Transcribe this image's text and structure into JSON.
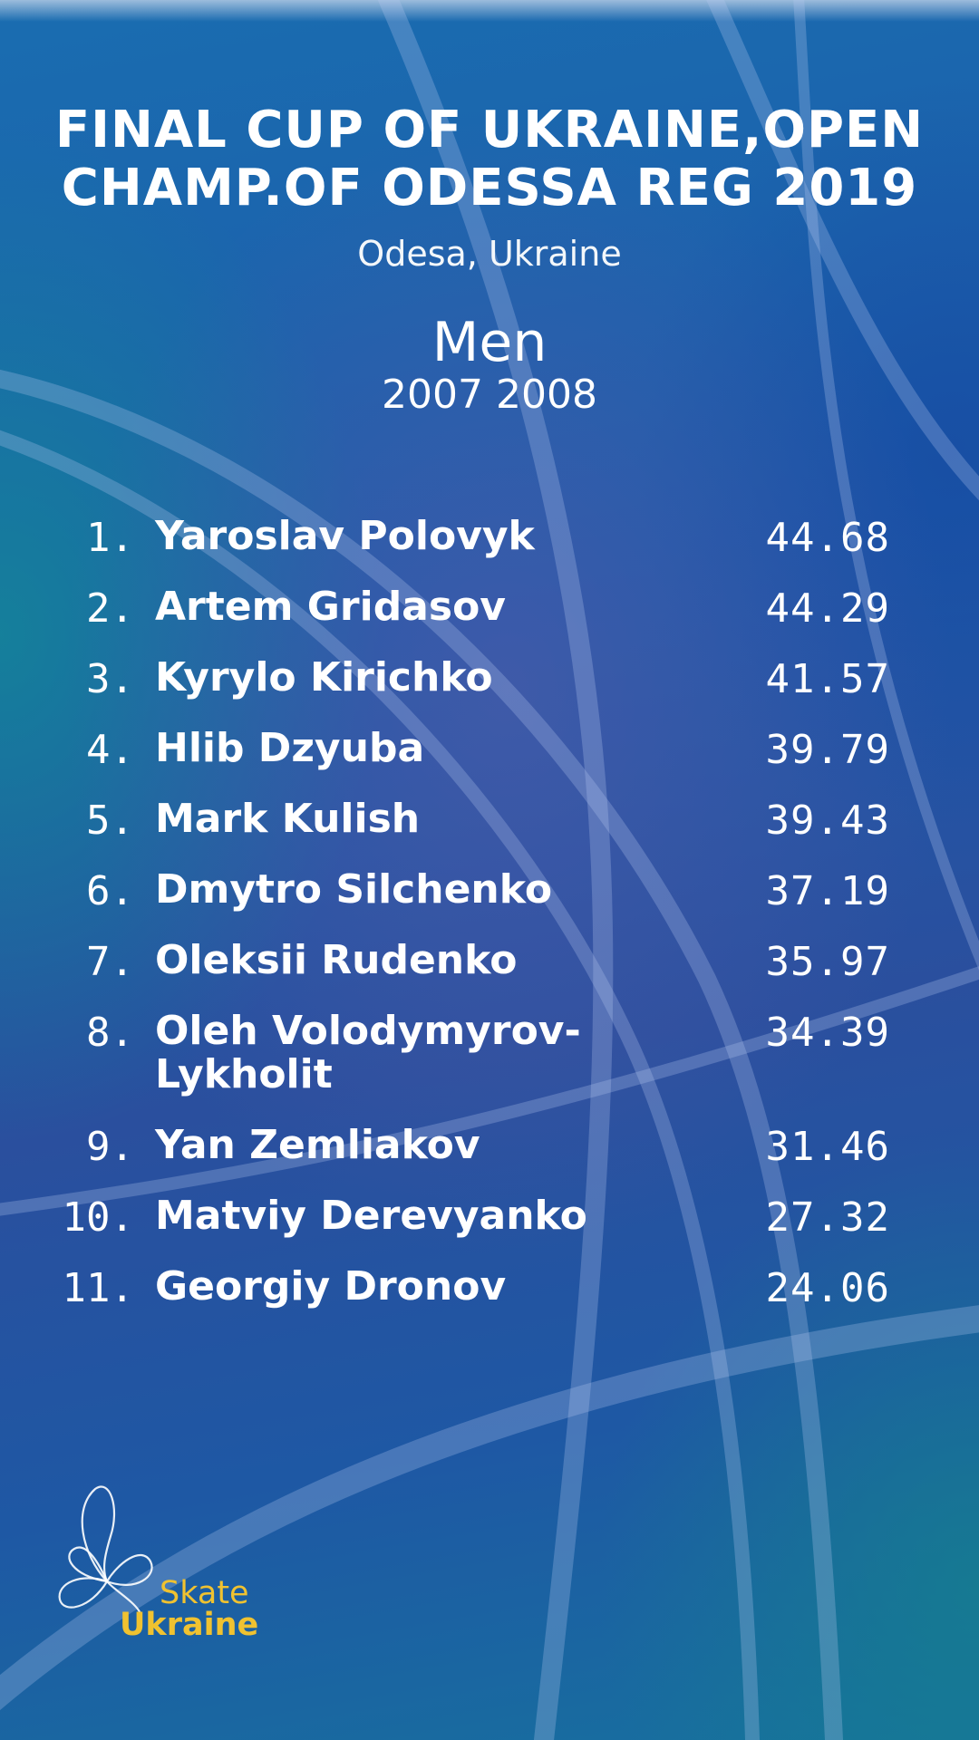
{
  "event": {
    "title": "FINAL CUP OF UKRAINE,OPEN CHAMP.OF ODESSA REG 2019",
    "location": "Odesa, Ukraine",
    "category": "Men",
    "subcategory": "2007 2008"
  },
  "results": [
    {
      "rank": "1.",
      "name": "Yaroslav Polovyk",
      "score": "44.68"
    },
    {
      "rank": "2.",
      "name": "Artem Gridasov",
      "score": "44.29"
    },
    {
      "rank": "3.",
      "name": "Kyrylo Kirichko",
      "score": "41.57"
    },
    {
      "rank": "4.",
      "name": "Hlib Dzyuba",
      "score": "39.79"
    },
    {
      "rank": "5.",
      "name": "Mark Kulish",
      "score": "39.43"
    },
    {
      "rank": "6.",
      "name": "Dmytro Silchenko",
      "score": "37.19"
    },
    {
      "rank": "7.",
      "name": "Oleksii Rudenko",
      "score": "35.97"
    },
    {
      "rank": "8.",
      "name": "Oleh Volodymyrov-Lykholit",
      "score": "34.39"
    },
    {
      "rank": "9.",
      "name": "Yan Zemliakov",
      "score": "31.46"
    },
    {
      "rank": "10.",
      "name": "Matviy Derevyanko",
      "score": "27.32"
    },
    {
      "rank": "11.",
      "name": "Georgiy Dronov",
      "score": "24.06"
    }
  ],
  "logo": {
    "line1": "Skate",
    "line2": "Ukraine",
    "color": "#f0c230",
    "icon": "skate-ukraine-flower-icon"
  },
  "colors": {
    "background": "#1d5aaa",
    "text": "#ffffff",
    "arc": "#9fb6e6"
  }
}
